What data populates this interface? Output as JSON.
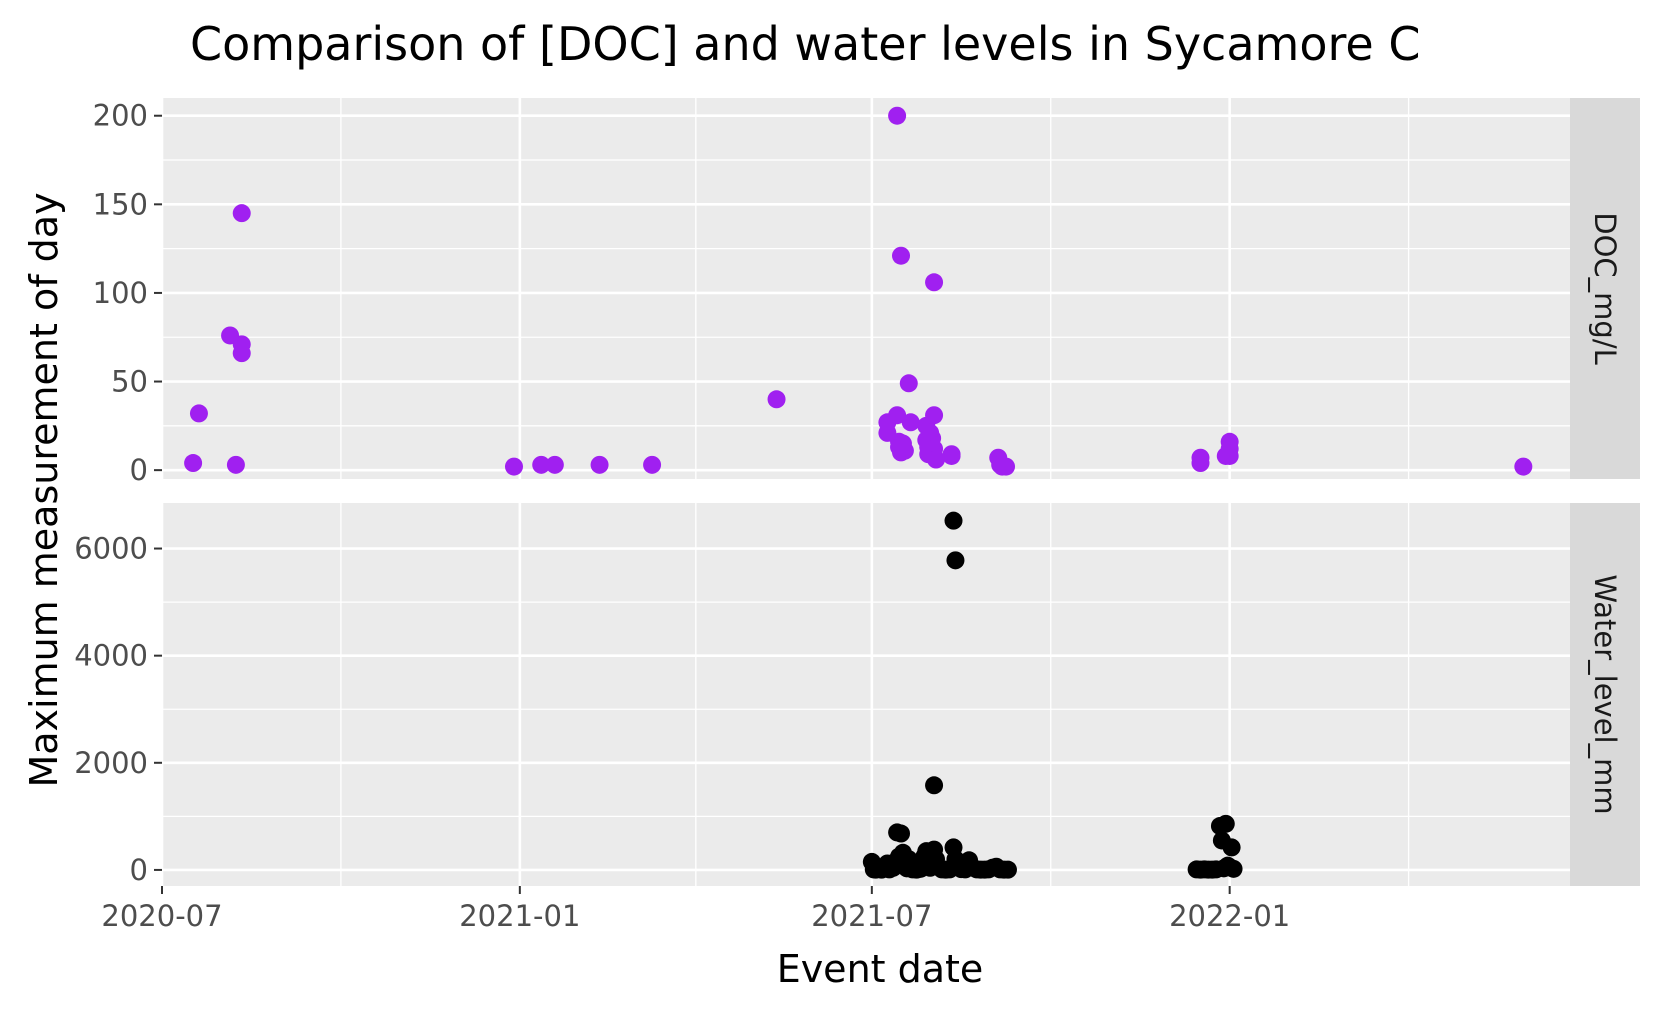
{
  "chart_data": {
    "type": "scatter",
    "title": "Comparison of [DOC] and water levels in Sycamore C",
    "xlabel": "Event date",
    "ylabel": "Maximum measurement of day",
    "x_ticks": [
      "2020-07",
      "2021-01",
      "2021-07",
      "2022-01"
    ],
    "xlim": [
      "2020-07-01",
      "2022-06-25"
    ],
    "facet_layout": "rows, strip labels on right",
    "grid": true,
    "colors": {
      "panel_bg": "#ebebeb",
      "grid": "#ffffff",
      "strip_bg": "#d9d9d9"
    },
    "panels": [
      {
        "label": "DOC_mg/L",
        "color": "#a020f0",
        "ylim": [
          -5,
          210
        ],
        "y_ticks": [
          0,
          50,
          100,
          150,
          200
        ],
        "points": [
          [
            "2020-07-17",
            4
          ],
          [
            "2020-07-20",
            32
          ],
          [
            "2020-08-05",
            76
          ],
          [
            "2020-08-08",
            3
          ],
          [
            "2020-08-11",
            145
          ],
          [
            "2020-08-11",
            71
          ],
          [
            "2020-08-11",
            66
          ],
          [
            "2020-12-29",
            2
          ],
          [
            "2021-01-12",
            3
          ],
          [
            "2021-01-19",
            3
          ],
          [
            "2021-02-11",
            3
          ],
          [
            "2021-03-10",
            3
          ],
          [
            "2021-05-13",
            40
          ],
          [
            "2021-07-09",
            27
          ],
          [
            "2021-07-09",
            21
          ],
          [
            "2021-07-14",
            200
          ],
          [
            "2021-07-14",
            31
          ],
          [
            "2021-07-15",
            16
          ],
          [
            "2021-07-15",
            13
          ],
          [
            "2021-07-16",
            121
          ],
          [
            "2021-07-16",
            10
          ],
          [
            "2021-07-17",
            15
          ],
          [
            "2021-07-18",
            11
          ],
          [
            "2021-07-20",
            49
          ],
          [
            "2021-07-21",
            27
          ],
          [
            "2021-07-29",
            25
          ],
          [
            "2021-07-29",
            17
          ],
          [
            "2021-07-30",
            13
          ],
          [
            "2021-07-30",
            9
          ],
          [
            "2021-07-31",
            21
          ],
          [
            "2021-08-01",
            18
          ],
          [
            "2021-08-02",
            12
          ],
          [
            "2021-08-02",
            106
          ],
          [
            "2021-08-02",
            31
          ],
          [
            "2021-08-03",
            6
          ],
          [
            "2021-08-11",
            9
          ],
          [
            "2021-08-11",
            8
          ],
          [
            "2021-09-04",
            7
          ],
          [
            "2021-09-05",
            3
          ],
          [
            "2021-09-06",
            2
          ],
          [
            "2021-09-08",
            2
          ],
          [
            "2021-12-17",
            4
          ],
          [
            "2021-12-17",
            7
          ],
          [
            "2021-12-30",
            8
          ],
          [
            "2022-01-01",
            16
          ],
          [
            "2022-01-01",
            12
          ],
          [
            "2022-01-01",
            8
          ],
          [
            "2022-06-01",
            2
          ]
        ]
      },
      {
        "label": "Water_level_mm",
        "color": "#000000",
        "ylim": [
          -300,
          6850
        ],
        "y_ticks": [
          0,
          2000,
          4000,
          6000
        ],
        "points": [
          [
            "2021-07-01",
            150
          ],
          [
            "2021-07-02",
            10
          ],
          [
            "2021-07-03",
            5
          ],
          [
            "2021-07-05",
            30
          ],
          [
            "2021-07-06",
            5
          ],
          [
            "2021-07-09",
            120
          ],
          [
            "2021-07-10",
            10
          ],
          [
            "2021-07-12",
            40
          ],
          [
            "2021-07-13",
            150
          ],
          [
            "2021-07-14",
            700
          ],
          [
            "2021-07-15",
            250
          ],
          [
            "2021-07-16",
            680
          ],
          [
            "2021-07-17",
            320
          ],
          [
            "2021-07-18",
            90
          ],
          [
            "2021-07-19",
            30
          ],
          [
            "2021-07-20",
            200
          ],
          [
            "2021-07-21",
            60
          ],
          [
            "2021-07-22",
            10
          ],
          [
            "2021-07-24",
            5
          ],
          [
            "2021-07-26",
            20
          ],
          [
            "2021-07-28",
            250
          ],
          [
            "2021-07-29",
            350
          ],
          [
            "2021-07-30",
            150
          ],
          [
            "2021-07-31",
            40
          ],
          [
            "2021-08-02",
            1580
          ],
          [
            "2021-08-02",
            380
          ],
          [
            "2021-08-03",
            200
          ],
          [
            "2021-08-04",
            60
          ],
          [
            "2021-08-06",
            10
          ],
          [
            "2021-08-08",
            5
          ],
          [
            "2021-08-10",
            10
          ],
          [
            "2021-08-12",
            6520
          ],
          [
            "2021-08-12",
            420
          ],
          [
            "2021-08-13",
            5780
          ],
          [
            "2021-08-13",
            200
          ],
          [
            "2021-08-14",
            50
          ],
          [
            "2021-08-16",
            15
          ],
          [
            "2021-08-18",
            10
          ],
          [
            "2021-08-20",
            180
          ],
          [
            "2021-08-22",
            40
          ],
          [
            "2021-08-24",
            10
          ],
          [
            "2021-08-26",
            5
          ],
          [
            "2021-08-28",
            5
          ],
          [
            "2021-08-30",
            10
          ],
          [
            "2021-09-01",
            40
          ],
          [
            "2021-09-03",
            60
          ],
          [
            "2021-09-05",
            10
          ],
          [
            "2021-09-07",
            5
          ],
          [
            "2021-09-09",
            5
          ],
          [
            "2021-12-15",
            10
          ],
          [
            "2021-12-17",
            5
          ],
          [
            "2021-12-19",
            10
          ],
          [
            "2021-12-21",
            5
          ],
          [
            "2021-12-23",
            5
          ],
          [
            "2021-12-25",
            10
          ],
          [
            "2021-12-27",
            820
          ],
          [
            "2021-12-28",
            550
          ],
          [
            "2021-12-29",
            30
          ],
          [
            "2021-12-30",
            860
          ],
          [
            "2021-12-31",
            80
          ],
          [
            "2022-01-01",
            50
          ],
          [
            "2022-01-02",
            420
          ],
          [
            "2022-01-03",
            20
          ]
        ]
      }
    ]
  }
}
